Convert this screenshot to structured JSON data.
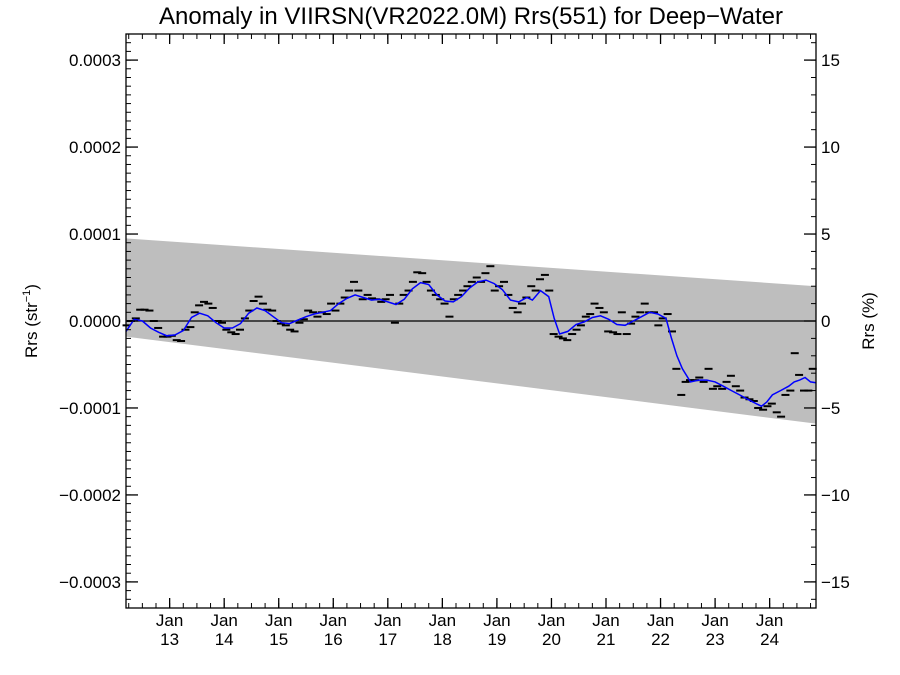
{
  "chart_data": {
    "type": "line",
    "title": "Anomaly in VIIRSN(VR2022.0M) Rrs(551) for Deep−Water",
    "ylabel": "Rrs (str",
    "ylabel_sup": "−1",
    "ylabel_close": ")",
    "y2label": "Rrs (%)",
    "ylim": [
      -0.00033,
      0.00033
    ],
    "y2lim": [
      -16.5,
      16.5
    ],
    "xlim": [
      2012.2,
      2024.85
    ],
    "yticks": [
      {
        "v": 0.0003,
        "label": "0.0003"
      },
      {
        "v": 0.0002,
        "label": "0.0002"
      },
      {
        "v": 0.0001,
        "label": "0.0001"
      },
      {
        "v": 0.0,
        "label": "0.0000"
      },
      {
        "v": -0.0001,
        "label": "−0.0001"
      },
      {
        "v": -0.0002,
        "label": "−0.0002"
      },
      {
        "v": -0.0003,
        "label": "−0.0003"
      }
    ],
    "y2ticks": [
      {
        "v": 15,
        "label": "15"
      },
      {
        "v": 10,
        "label": "10"
      },
      {
        "v": 5,
        "label": "5"
      },
      {
        "v": 0,
        "label": "0"
      },
      {
        "v": -5,
        "label": "−5"
      },
      {
        "v": -10,
        "label": "−10"
      },
      {
        "v": -15,
        "label": "−15"
      }
    ],
    "xticks": [
      {
        "v": 2013.0,
        "l1": "Jan",
        "l2": "13"
      },
      {
        "v": 2014.0,
        "l1": "Jan",
        "l2": "14"
      },
      {
        "v": 2015.0,
        "l1": "Jan",
        "l2": "15"
      },
      {
        "v": 2016.0,
        "l1": "Jan",
        "l2": "16"
      },
      {
        "v": 2017.0,
        "l1": "Jan",
        "l2": "17"
      },
      {
        "v": 2018.0,
        "l1": "Jan",
        "l2": "18"
      },
      {
        "v": 2019.0,
        "l1": "Jan",
        "l2": "19"
      },
      {
        "v": 2020.0,
        "l1": "Jan",
        "l2": "20"
      },
      {
        "v": 2021.0,
        "l1": "Jan",
        "l2": "21"
      },
      {
        "v": 2022.0,
        "l1": "Jan",
        "l2": "22"
      },
      {
        "v": 2023.0,
        "l1": "Jan",
        "l2": "23"
      },
      {
        "v": 2024.0,
        "l1": "Jan",
        "l2": "24"
      }
    ],
    "band": {
      "upper": [
        [
          2012.2,
          9.5e-05
        ],
        [
          2024.85,
          4e-05
        ]
      ],
      "lower": [
        [
          2012.2,
          -1.8e-05
        ],
        [
          2024.85,
          -0.000118
        ]
      ],
      "color": "#bebebe"
    },
    "zero_line": 0,
    "monthly": [
      [
        2012.21,
        -5e-06
      ],
      [
        2012.29,
        0.0
      ],
      [
        2012.38,
        3e-06
      ],
      [
        2012.46,
        1.3e-05
      ],
      [
        2012.54,
        1.3e-05
      ],
      [
        2012.63,
        1.2e-05
      ],
      [
        2012.71,
        0.0
      ],
      [
        2012.79,
        -8e-06
      ],
      [
        2012.88,
        -1.8e-05
      ],
      [
        2012.96,
        -1.8e-05
      ],
      [
        2013.04,
        -1.7e-05
      ],
      [
        2013.13,
        -2.2e-05
      ],
      [
        2013.21,
        -2.3e-05
      ],
      [
        2013.29,
        -1e-05
      ],
      [
        2013.38,
        -7e-06
      ],
      [
        2013.46,
        1e-05
      ],
      [
        2013.54,
        1.8e-05
      ],
      [
        2013.63,
        2.2e-05
      ],
      [
        2013.71,
        2e-05
      ],
      [
        2013.79,
        1.5e-05
      ],
      [
        2013.88,
        0.0
      ],
      [
        2013.96,
        -2e-06
      ],
      [
        2014.04,
        -1e-05
      ],
      [
        2014.13,
        -1.3e-05
      ],
      [
        2014.21,
        -1.5e-05
      ],
      [
        2014.29,
        -1e-05
      ],
      [
        2014.38,
        3e-06
      ],
      [
        2014.46,
        1.2e-05
      ],
      [
        2014.54,
        2.3e-05
      ],
      [
        2014.63,
        2.8e-05
      ],
      [
        2014.71,
        2e-05
      ],
      [
        2014.79,
        1.3e-05
      ],
      [
        2014.88,
        1.2e-05
      ],
      [
        2014.96,
        0.0
      ],
      [
        2015.04,
        -3e-06
      ],
      [
        2015.13,
        -5e-06
      ],
      [
        2015.21,
        -1e-05
      ],
      [
        2015.29,
        -1.2e-05
      ],
      [
        2015.38,
        -2e-06
      ],
      [
        2015.46,
        2e-06
      ],
      [
        2015.54,
        1.2e-05
      ],
      [
        2015.63,
        1e-05
      ],
      [
        2015.71,
        5e-06
      ],
      [
        2015.79,
        1e-05
      ],
      [
        2015.88,
        8e-06
      ],
      [
        2015.96,
        2e-05
      ],
      [
        2016.04,
        1.2e-05
      ],
      [
        2016.13,
        2e-05
      ],
      [
        2016.21,
        2.7e-05
      ],
      [
        2016.29,
        3.5e-05
      ],
      [
        2016.38,
        4.5e-05
      ],
      [
        2016.46,
        3.5e-05
      ],
      [
        2016.54,
        2.5e-05
      ],
      [
        2016.63,
        3e-05
      ],
      [
        2016.71,
        2.6e-05
      ],
      [
        2016.79,
        2.5e-05
      ],
      [
        2016.88,
        2.2e-05
      ],
      [
        2016.96,
        2.5e-05
      ],
      [
        2017.04,
        3e-05
      ],
      [
        2017.13,
        -2e-06
      ],
      [
        2017.21,
        2e-05
      ],
      [
        2017.29,
        3e-05
      ],
      [
        2017.38,
        3.5e-05
      ],
      [
        2017.46,
        4.5e-05
      ],
      [
        2017.54,
        5.6e-05
      ],
      [
        2017.63,
        5.5e-05
      ],
      [
        2017.71,
        4.5e-05
      ],
      [
        2017.79,
        3.5e-05
      ],
      [
        2017.88,
        3e-05
      ],
      [
        2017.96,
        2.5e-05
      ],
      [
        2018.04,
        2e-05
      ],
      [
        2018.13,
        5e-06
      ],
      [
        2018.21,
        2.5e-05
      ],
      [
        2018.29,
        3e-05
      ],
      [
        2018.38,
        3.5e-05
      ],
      [
        2018.46,
        4e-05
      ],
      [
        2018.54,
        4.5e-05
      ],
      [
        2018.63,
        5e-05
      ],
      [
        2018.71,
        4.5e-05
      ],
      [
        2018.79,
        5.5e-05
      ],
      [
        2018.88,
        6.3e-05
      ],
      [
        2018.96,
        3.5e-05
      ],
      [
        2019.04,
        4e-05
      ],
      [
        2019.13,
        4.5e-05
      ],
      [
        2019.21,
        3e-05
      ],
      [
        2019.29,
        1.5e-05
      ],
      [
        2019.38,
        1e-05
      ],
      [
        2019.46,
        2e-05
      ],
      [
        2019.54,
        2.7e-05
      ],
      [
        2019.63,
        4e-05
      ],
      [
        2019.71,
        3.5e-05
      ],
      [
        2019.79,
        4.8e-05
      ],
      [
        2019.88,
        5.3e-05
      ],
      [
        2019.96,
        3.5e-05
      ],
      [
        2020.04,
        -1.5e-05
      ],
      [
        2020.13,
        -1.8e-05
      ],
      [
        2020.21,
        -2e-05
      ],
      [
        2020.29,
        -2.2e-05
      ],
      [
        2020.38,
        -1.5e-05
      ],
      [
        2020.46,
        -1e-05
      ],
      [
        2020.54,
        -5e-06
      ],
      [
        2020.63,
        5e-06
      ],
      [
        2020.71,
        8e-06
      ],
      [
        2020.79,
        2e-05
      ],
      [
        2020.88,
        1.5e-05
      ],
      [
        2020.96,
        1e-05
      ],
      [
        2021.04,
        -1.2e-05
      ],
      [
        2021.13,
        -1.3e-05
      ],
      [
        2021.21,
        -1.5e-05
      ],
      [
        2021.29,
        1e-05
      ],
      [
        2021.38,
        -1.5e-05
      ],
      [
        2021.46,
        -3e-06
      ],
      [
        2021.54,
        5e-06
      ],
      [
        2021.63,
        1e-05
      ],
      [
        2021.71,
        2e-05
      ],
      [
        2021.79,
        1e-05
      ],
      [
        2021.88,
        1e-05
      ],
      [
        2021.96,
        -5e-06
      ],
      [
        2022.04,
        3e-06
      ],
      [
        2022.13,
        8e-06
      ],
      [
        2022.21,
        -1.2e-05
      ],
      [
        2022.29,
        -5.5e-05
      ],
      [
        2022.38,
        -8.5e-05
      ],
      [
        2022.46,
        -7e-05
      ],
      [
        2022.54,
        -6.8e-05
      ],
      [
        2022.63,
        -6.8e-05
      ],
      [
        2022.71,
        -6.5e-05
      ],
      [
        2022.79,
        -7e-05
      ],
      [
        2022.88,
        -5.5e-05
      ],
      [
        2022.96,
        -7.8e-05
      ],
      [
        2023.04,
        -7.5e-05
      ],
      [
        2023.13,
        -7.8e-05
      ],
      [
        2023.21,
        -7e-05
      ],
      [
        2023.29,
        -6.3e-05
      ],
      [
        2023.38,
        -7.5e-05
      ],
      [
        2023.46,
        -8e-05
      ],
      [
        2023.54,
        -8.8e-05
      ],
      [
        2023.63,
        -9e-05
      ],
      [
        2023.71,
        -9.2e-05
      ],
      [
        2023.79,
        -0.0001
      ],
      [
        2023.88,
        -0.000102
      ],
      [
        2023.96,
        -9.8e-05
      ],
      [
        2024.04,
        -9.5e-05
      ],
      [
        2024.13,
        -0.000105
      ],
      [
        2024.21,
        -0.00011
      ],
      [
        2024.29,
        -8.5e-05
      ],
      [
        2024.38,
        -8e-05
      ],
      [
        2024.46,
        -3.7e-05
      ],
      [
        2024.54,
        -6.2e-05
      ],
      [
        2024.63,
        -8e-05
      ],
      [
        2024.71,
        -8e-05
      ],
      [
        2024.79,
        -5.5e-05
      ]
    ],
    "smooth": [
      [
        2012.2,
        -1.2e-05
      ],
      [
        2012.35,
        2e-06
      ],
      [
        2012.5,
        0.0
      ],
      [
        2012.65,
        -8e-06
      ],
      [
        2012.8,
        -1.3e-05
      ],
      [
        2012.95,
        -1.7e-05
      ],
      [
        2013.1,
        -1.6e-05
      ],
      [
        2013.25,
        -1.1e-05
      ],
      [
        2013.4,
        4e-06
      ],
      [
        2013.55,
        9e-06
      ],
      [
        2013.7,
        6e-06
      ],
      [
        2013.85,
        -2e-06
      ],
      [
        2014.0,
        -8e-06
      ],
      [
        2014.15,
        -8e-06
      ],
      [
        2014.3,
        -3e-06
      ],
      [
        2014.45,
        9e-06
      ],
      [
        2014.6,
        1.5e-05
      ],
      [
        2014.75,
        1.2e-05
      ],
      [
        2014.9,
        5e-06
      ],
      [
        2015.05,
        -2e-06
      ],
      [
        2015.2,
        -3e-06
      ],
      [
        2015.35,
        1e-06
      ],
      [
        2015.5,
        5e-06
      ],
      [
        2015.65,
        8e-06
      ],
      [
        2015.8,
        1e-05
      ],
      [
        2015.95,
        1.2e-05
      ],
      [
        2016.1,
        2e-05
      ],
      [
        2016.25,
        2.6e-05
      ],
      [
        2016.4,
        3e-05
      ],
      [
        2016.55,
        2.7e-05
      ],
      [
        2016.7,
        2.4e-05
      ],
      [
        2016.85,
        2.5e-05
      ],
      [
        2017.0,
        2.2e-05
      ],
      [
        2017.15,
        1.9e-05
      ],
      [
        2017.3,
        2.5e-05
      ],
      [
        2017.45,
        3.7e-05
      ],
      [
        2017.6,
        4.4e-05
      ],
      [
        2017.75,
        4.2e-05
      ],
      [
        2017.9,
        3e-05
      ],
      [
        2018.05,
        2.3e-05
      ],
      [
        2018.2,
        2.2e-05
      ],
      [
        2018.35,
        2.8e-05
      ],
      [
        2018.5,
        3.8e-05
      ],
      [
        2018.65,
        4.5e-05
      ],
      [
        2018.8,
        4.7e-05
      ],
      [
        2018.95,
        4.3e-05
      ],
      [
        2019.1,
        3.6e-05
      ],
      [
        2019.25,
        2.4e-05
      ],
      [
        2019.4,
        2.2e-05
      ],
      [
        2019.55,
        2.7e-05
      ],
      [
        2019.65,
        2.4e-05
      ],
      [
        2019.8,
        3.5e-05
      ],
      [
        2019.95,
        2.8e-05
      ],
      [
        2020.05,
        3e-06
      ],
      [
        2020.15,
        -1.5e-05
      ],
      [
        2020.3,
        -1.2e-05
      ],
      [
        2020.45,
        -4e-06
      ],
      [
        2020.6,
        -1e-06
      ],
      [
        2020.75,
        4e-06
      ],
      [
        2020.9,
        6e-06
      ],
      [
        2021.05,
        2e-06
      ],
      [
        2021.2,
        -4e-06
      ],
      [
        2021.35,
        -5e-06
      ],
      [
        2021.5,
        0.0
      ],
      [
        2021.65,
        5e-06
      ],
      [
        2021.8,
        1e-05
      ],
      [
        2021.95,
        8e-06
      ],
      [
        2022.1,
        3e-06
      ],
      [
        2022.2,
        -2e-05
      ],
      [
        2022.3,
        -4e-05
      ],
      [
        2022.4,
        -5.5e-05
      ],
      [
        2022.55,
        -7e-05
      ],
      [
        2022.7,
        -6.8e-05
      ],
      [
        2022.85,
        -6.8e-05
      ],
      [
        2023.0,
        -7e-05
      ],
      [
        2023.15,
        -7.5e-05
      ],
      [
        2023.3,
        -8e-05
      ],
      [
        2023.45,
        -8.5e-05
      ],
      [
        2023.6,
        -9e-05
      ],
      [
        2023.75,
        -9.5e-05
      ],
      [
        2023.85,
        -9.8e-05
      ],
      [
        2023.95,
        -9.3e-05
      ],
      [
        2024.05,
        -8.5e-05
      ],
      [
        2024.2,
        -8e-05
      ],
      [
        2024.35,
        -7.5e-05
      ],
      [
        2024.45,
        -7e-05
      ],
      [
        2024.55,
        -6.8e-05
      ],
      [
        2024.65,
        -6.5e-05
      ],
      [
        2024.75,
        -7e-05
      ],
      [
        2024.85,
        -7.1e-05
      ]
    ],
    "colors": {
      "smooth": "#0000ff",
      "monthly": "#000000",
      "band": "#bebebe",
      "zero": "#000000"
    }
  }
}
